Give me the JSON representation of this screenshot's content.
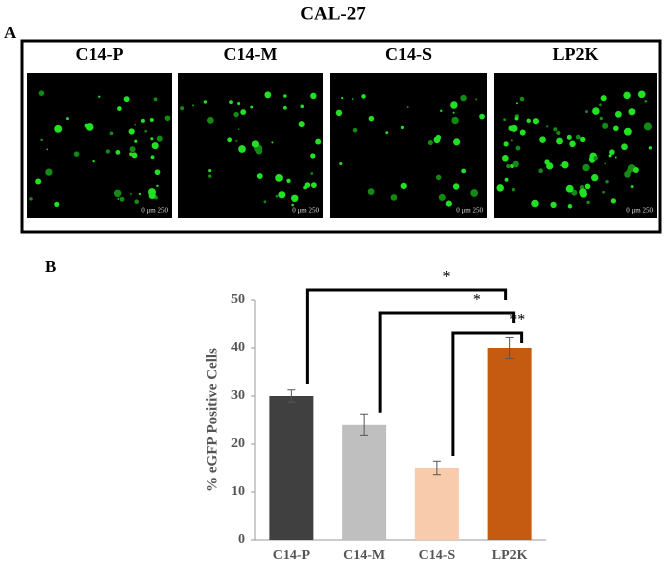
{
  "figure_title": "CAL-27",
  "panel_a": {
    "label": "A",
    "images": [
      {
        "label": "C14-P",
        "scale": "0 μm 250"
      },
      {
        "label": "C14-M",
        "scale": "0 μm 250"
      },
      {
        "label": "C14-S",
        "scale": "0 μm 250"
      },
      {
        "label": "LP2K",
        "scale": "0 μm 250"
      }
    ]
  },
  "chart_data": {
    "type": "bar",
    "panel_label": "B",
    "ylabel": "% eGFP Positive Cells",
    "categories": [
      "C14-P",
      "C14-M",
      "C14-S",
      "LP2K"
    ],
    "values": [
      30,
      24,
      15,
      40
    ],
    "errors": [
      1.3,
      2.2,
      1.4,
      2.2
    ],
    "colors": [
      "#404040",
      "#bfbfbf",
      "#f8cbad",
      "#c55a11"
    ],
    "ylim": [
      0,
      50
    ],
    "yticks": [
      0,
      10,
      20,
      30,
      40,
      50
    ],
    "annotations": [
      "*",
      "*",
      "**"
    ]
  }
}
